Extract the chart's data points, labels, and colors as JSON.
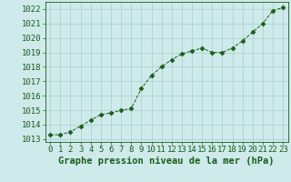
{
  "x": [
    0,
    1,
    2,
    3,
    4,
    5,
    6,
    7,
    8,
    9,
    10,
    11,
    12,
    13,
    14,
    15,
    16,
    17,
    18,
    19,
    20,
    21,
    22,
    23
  ],
  "y": [
    1013.3,
    1013.3,
    1013.5,
    1013.9,
    1014.3,
    1014.7,
    1014.8,
    1015.0,
    1015.1,
    1016.5,
    1017.4,
    1018.0,
    1018.5,
    1018.9,
    1019.1,
    1019.3,
    1019.0,
    1019.0,
    1019.3,
    1019.8,
    1020.4,
    1021.0,
    1021.9,
    1022.1
  ],
  "line_color": "#1a5c1a",
  "marker": "D",
  "marker_size": 2.5,
  "bg_color": "#ceeaea",
  "grid_color": "#aacece",
  "xlabel": "Graphe pression niveau de la mer (hPa)",
  "xlabel_fontsize": 7.5,
  "tick_fontsize": 6.5,
  "ylim": [
    1012.8,
    1022.5
  ],
  "xlim": [
    -0.5,
    23.5
  ],
  "yticks": [
    1013,
    1014,
    1015,
    1016,
    1017,
    1018,
    1019,
    1020,
    1021,
    1022
  ],
  "xticks": [
    0,
    1,
    2,
    3,
    4,
    5,
    6,
    7,
    8,
    9,
    10,
    11,
    12,
    13,
    14,
    15,
    16,
    17,
    18,
    19,
    20,
    21,
    22,
    23
  ]
}
